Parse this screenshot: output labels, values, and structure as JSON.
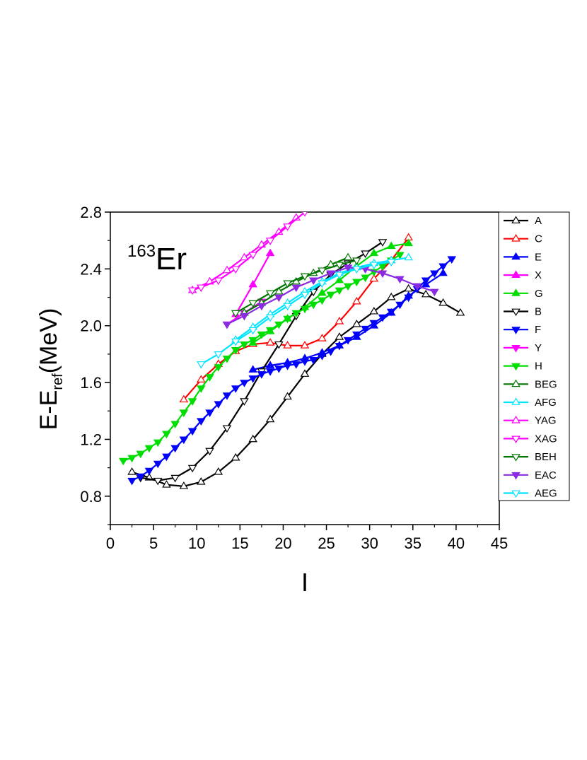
{
  "chart_data": {
    "type": "line",
    "annotation": {
      "mass": "163",
      "element": "Er"
    },
    "xlabel": "I",
    "ylabel": {
      "main": "E-E",
      "sub": "ref",
      "tail": "(MeV)"
    },
    "xlim": [
      0,
      45
    ],
    "ylim": [
      0.6,
      2.8
    ],
    "xticks": [
      0,
      5,
      10,
      15,
      20,
      25,
      30,
      35,
      40,
      45
    ],
    "yticks": [
      0.8,
      1.2,
      1.6,
      2.0,
      2.4,
      2.8
    ],
    "legend_position": "right",
    "series": [
      {
        "name": "A",
        "color": "#000000",
        "marker": "tri-up",
        "filled": false,
        "x": [
          2.5,
          4.5,
          6.5,
          8.5,
          10.5,
          12.5,
          14.5,
          16.5,
          18.5,
          20.5,
          22.5,
          24.5,
          26.5,
          28.5,
          30.5,
          32.5,
          34.5,
          36.5,
          38.5,
          40.5
        ],
        "y": [
          0.97,
          0.93,
          0.88,
          0.87,
          0.9,
          0.97,
          1.07,
          1.2,
          1.34,
          1.5,
          1.66,
          1.8,
          1.92,
          2.01,
          2.1,
          2.2,
          2.26,
          2.22,
          2.16,
          2.09
        ]
      },
      {
        "name": "C",
        "color": "#ff0000",
        "marker": "tri-up",
        "filled": false,
        "x": [
          8.5,
          10.5,
          12.5,
          14.5,
          16.5,
          18.5,
          20.5,
          22.5,
          24.5,
          26.5,
          28.5,
          30.5,
          32.5,
          34.5
        ],
        "y": [
          1.48,
          1.62,
          1.73,
          1.82,
          1.87,
          1.88,
          1.86,
          1.86,
          1.91,
          2.03,
          2.17,
          2.33,
          2.46,
          2.62
        ]
      },
      {
        "name": "E",
        "color": "#0000ff",
        "marker": "tri-up",
        "filled": true,
        "x": [
          16.5,
          18.5,
          20.5,
          22.5,
          24.5,
          26.5,
          28.5,
          30.5,
          32.5,
          34.5,
          36.5,
          38.5
        ],
        "y": [
          1.69,
          1.72,
          1.74,
          1.77,
          1.81,
          1.86,
          1.92,
          2.0,
          2.09,
          2.21,
          2.29,
          2.37
        ]
      },
      {
        "name": "X",
        "color": "#ff00ff",
        "marker": "tri-up",
        "filled": true,
        "x": [
          14.5,
          16.5,
          18.5
        ],
        "y": [
          2.08,
          2.29,
          2.51
        ]
      },
      {
        "name": "G",
        "color": "#00dd00",
        "marker": "tri-up",
        "filled": true,
        "x": [
          16.5,
          18.5,
          20.5,
          22.5,
          24.5,
          26.5,
          28.5,
          30.5,
          32.5,
          34.5
        ],
        "y": [
          1.88,
          1.96,
          2.05,
          2.13,
          2.23,
          2.32,
          2.42,
          2.51,
          2.56,
          2.58
        ]
      },
      {
        "name": "B",
        "color": "#000000",
        "marker": "tri-down",
        "filled": false,
        "x": [
          3.5,
          5.5,
          7.5,
          9.5,
          11.5,
          13.5,
          15.5,
          17.5,
          19.5,
          21.5,
          23.5,
          25.5,
          27.5,
          29.5,
          31.5
        ],
        "y": [
          0.93,
          0.91,
          0.93,
          1.0,
          1.12,
          1.28,
          1.47,
          1.68,
          1.87,
          2.07,
          2.24,
          2.36,
          2.44,
          2.51,
          2.59
        ]
      },
      {
        "name": "F",
        "color": "#0000ff",
        "marker": "tri-down",
        "filled": true,
        "x": [
          2.5,
          3.5,
          4.5,
          5.5,
          6.5,
          7.5,
          8.5,
          9.5,
          10.5,
          11.5,
          12.5,
          13.5,
          14.5,
          15.5,
          16.5,
          17.5,
          18.5,
          19.5,
          20.5,
          21.5,
          22.5,
          23.5,
          24.5,
          25.5,
          26.5,
          27.5,
          28.5,
          29.5,
          30.5,
          31.5,
          32.5,
          33.5,
          34.5,
          35.5,
          36.5,
          37.5,
          38.5,
          39.5
        ],
        "y": [
          0.91,
          0.94,
          0.98,
          1.03,
          1.08,
          1.14,
          1.2,
          1.26,
          1.33,
          1.39,
          1.45,
          1.51,
          1.56,
          1.6,
          1.63,
          1.66,
          1.68,
          1.7,
          1.72,
          1.73,
          1.75,
          1.76,
          1.79,
          1.82,
          1.86,
          1.9,
          1.94,
          1.98,
          2.02,
          2.06,
          2.1,
          2.15,
          2.2,
          2.26,
          2.32,
          2.37,
          2.42,
          2.47
        ]
      },
      {
        "name": "Y",
        "color": "#ff00ff",
        "marker": "tri-down",
        "filled": true,
        "x": [
          13.5,
          15.5,
          17.5
        ],
        "y": [
          2.01,
          2.09,
          2.17
        ]
      },
      {
        "name": "H",
        "color": "#00dd00",
        "marker": "tri-down",
        "filled": true,
        "x": [
          1.5,
          2.5,
          3.5,
          4.5,
          5.5,
          6.5,
          7.5,
          8.5,
          9.5,
          10.5,
          11.5,
          12.5,
          13.5,
          14.5,
          15.5,
          16.5,
          17.5,
          18.5,
          19.5,
          20.5,
          21.5,
          22.5,
          23.5,
          24.5,
          25.5,
          26.5,
          27.5,
          28.5,
          29.5,
          30.5,
          31.5,
          32.5,
          33.5
        ],
        "y": [
          1.05,
          1.07,
          1.1,
          1.14,
          1.18,
          1.24,
          1.31,
          1.39,
          1.47,
          1.56,
          1.64,
          1.71,
          1.77,
          1.83,
          1.87,
          1.9,
          1.94,
          1.97,
          2.01,
          2.05,
          2.09,
          2.12,
          2.15,
          2.18,
          2.22,
          2.25,
          2.28,
          2.31,
          2.34,
          2.38,
          2.42,
          2.46,
          2.5
        ]
      },
      {
        "name": "BEG",
        "color": "#007700",
        "marker": "tri-up",
        "filled": false,
        "x": [
          15.5,
          17.5,
          19.5,
          21.5,
          23.5,
          25.5,
          27.5
        ],
        "y": [
          2.09,
          2.16,
          2.24,
          2.31,
          2.37,
          2.43,
          2.48
        ]
      },
      {
        "name": "AFG",
        "color": "#00e5ff",
        "marker": "tri-up",
        "filled": false,
        "x": [
          14.5,
          16.5,
          18.5,
          20.5,
          22.5,
          24.5,
          26.5,
          28.5,
          30.5,
          32.5,
          34.5
        ],
        "y": [
          1.9,
          1.99,
          2.08,
          2.16,
          2.24,
          2.31,
          2.37,
          2.41,
          2.44,
          2.46,
          2.48
        ]
      },
      {
        "name": "YAG",
        "color": "#ff00ff",
        "marker": "tri-up",
        "filled": false,
        "x": [
          9.5,
          11.5,
          13.5,
          15.5,
          17.5,
          19.5,
          21.5
        ],
        "y": [
          2.25,
          2.31,
          2.39,
          2.48,
          2.57,
          2.66,
          2.76
        ]
      },
      {
        "name": "XAG",
        "color": "#ff00ff",
        "marker": "tri-down",
        "filled": false,
        "x": [
          9.5,
          10.5,
          12.5,
          14.5,
          16.5,
          18.5,
          20.5,
          22.5
        ],
        "y": [
          2.25,
          2.27,
          2.32,
          2.4,
          2.5,
          2.6,
          2.7,
          2.8
        ]
      },
      {
        "name": "BEH",
        "color": "#007700",
        "marker": "tri-down",
        "filled": false,
        "x": [
          14.5,
          16.5,
          18.5,
          20.5,
          22.5,
          24.5,
          26.5,
          28.5
        ],
        "y": [
          2.09,
          2.16,
          2.23,
          2.3,
          2.35,
          2.39,
          2.43,
          2.46
        ]
      },
      {
        "name": "EAC",
        "color": "#8a2be2",
        "marker": "tri-down",
        "filled": true,
        "x": [
          13.5,
          15.5,
          17.5,
          19.5,
          21.5,
          23.5,
          25.5,
          27.5,
          29.5,
          31.5,
          33.5,
          35.5,
          37.5
        ],
        "y": [
          2.01,
          2.07,
          2.14,
          2.2,
          2.27,
          2.32,
          2.37,
          2.41,
          2.4,
          2.37,
          2.33,
          2.28,
          2.24
        ]
      },
      {
        "name": "AEG",
        "color": "#00e5ff",
        "marker": "tri-down",
        "filled": false,
        "x": [
          10.5,
          12.5,
          14.5,
          16.5,
          18.5,
          20.5,
          22.5,
          24.5,
          26.5,
          28.5,
          30.5,
          32.5
        ],
        "y": [
          1.73,
          1.8,
          1.89,
          1.97,
          2.06,
          2.14,
          2.22,
          2.3,
          2.36,
          2.4,
          2.43,
          2.45
        ]
      }
    ]
  }
}
